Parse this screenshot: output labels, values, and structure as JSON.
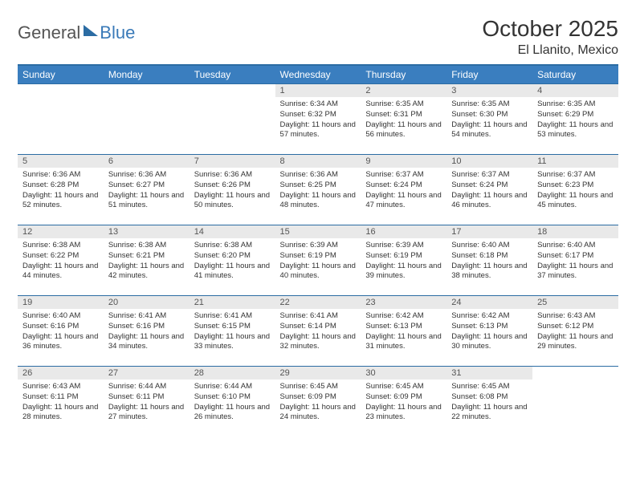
{
  "brand": {
    "part1": "General",
    "part2": "Blue"
  },
  "title": "October 2025",
  "location": "El Llanito, Mexico",
  "colors": {
    "header_bg": "#3a7ebf",
    "header_border": "#2b6ca3",
    "daynum_bg": "#e9e9e9",
    "text": "#333333",
    "brand_accent": "#3a7ab8"
  },
  "weekdays": [
    "Sunday",
    "Monday",
    "Tuesday",
    "Wednesday",
    "Thursday",
    "Friday",
    "Saturday"
  ],
  "weeks": [
    [
      null,
      null,
      null,
      {
        "n": "1",
        "sr": "6:34 AM",
        "ss": "6:32 PM",
        "dl": "11 hours and 57 minutes."
      },
      {
        "n": "2",
        "sr": "6:35 AM",
        "ss": "6:31 PM",
        "dl": "11 hours and 56 minutes."
      },
      {
        "n": "3",
        "sr": "6:35 AM",
        "ss": "6:30 PM",
        "dl": "11 hours and 54 minutes."
      },
      {
        "n": "4",
        "sr": "6:35 AM",
        "ss": "6:29 PM",
        "dl": "11 hours and 53 minutes."
      }
    ],
    [
      {
        "n": "5",
        "sr": "6:36 AM",
        "ss": "6:28 PM",
        "dl": "11 hours and 52 minutes."
      },
      {
        "n": "6",
        "sr": "6:36 AM",
        "ss": "6:27 PM",
        "dl": "11 hours and 51 minutes."
      },
      {
        "n": "7",
        "sr": "6:36 AM",
        "ss": "6:26 PM",
        "dl": "11 hours and 50 minutes."
      },
      {
        "n": "8",
        "sr": "6:36 AM",
        "ss": "6:25 PM",
        "dl": "11 hours and 48 minutes."
      },
      {
        "n": "9",
        "sr": "6:37 AM",
        "ss": "6:24 PM",
        "dl": "11 hours and 47 minutes."
      },
      {
        "n": "10",
        "sr": "6:37 AM",
        "ss": "6:24 PM",
        "dl": "11 hours and 46 minutes."
      },
      {
        "n": "11",
        "sr": "6:37 AM",
        "ss": "6:23 PM",
        "dl": "11 hours and 45 minutes."
      }
    ],
    [
      {
        "n": "12",
        "sr": "6:38 AM",
        "ss": "6:22 PM",
        "dl": "11 hours and 44 minutes."
      },
      {
        "n": "13",
        "sr": "6:38 AM",
        "ss": "6:21 PM",
        "dl": "11 hours and 42 minutes."
      },
      {
        "n": "14",
        "sr": "6:38 AM",
        "ss": "6:20 PM",
        "dl": "11 hours and 41 minutes."
      },
      {
        "n": "15",
        "sr": "6:39 AM",
        "ss": "6:19 PM",
        "dl": "11 hours and 40 minutes."
      },
      {
        "n": "16",
        "sr": "6:39 AM",
        "ss": "6:19 PM",
        "dl": "11 hours and 39 minutes."
      },
      {
        "n": "17",
        "sr": "6:40 AM",
        "ss": "6:18 PM",
        "dl": "11 hours and 38 minutes."
      },
      {
        "n": "18",
        "sr": "6:40 AM",
        "ss": "6:17 PM",
        "dl": "11 hours and 37 minutes."
      }
    ],
    [
      {
        "n": "19",
        "sr": "6:40 AM",
        "ss": "6:16 PM",
        "dl": "11 hours and 36 minutes."
      },
      {
        "n": "20",
        "sr": "6:41 AM",
        "ss": "6:16 PM",
        "dl": "11 hours and 34 minutes."
      },
      {
        "n": "21",
        "sr": "6:41 AM",
        "ss": "6:15 PM",
        "dl": "11 hours and 33 minutes."
      },
      {
        "n": "22",
        "sr": "6:41 AM",
        "ss": "6:14 PM",
        "dl": "11 hours and 32 minutes."
      },
      {
        "n": "23",
        "sr": "6:42 AM",
        "ss": "6:13 PM",
        "dl": "11 hours and 31 minutes."
      },
      {
        "n": "24",
        "sr": "6:42 AM",
        "ss": "6:13 PM",
        "dl": "11 hours and 30 minutes."
      },
      {
        "n": "25",
        "sr": "6:43 AM",
        "ss": "6:12 PM",
        "dl": "11 hours and 29 minutes."
      }
    ],
    [
      {
        "n": "26",
        "sr": "6:43 AM",
        "ss": "6:11 PM",
        "dl": "11 hours and 28 minutes."
      },
      {
        "n": "27",
        "sr": "6:44 AM",
        "ss": "6:11 PM",
        "dl": "11 hours and 27 minutes."
      },
      {
        "n": "28",
        "sr": "6:44 AM",
        "ss": "6:10 PM",
        "dl": "11 hours and 26 minutes."
      },
      {
        "n": "29",
        "sr": "6:45 AM",
        "ss": "6:09 PM",
        "dl": "11 hours and 24 minutes."
      },
      {
        "n": "30",
        "sr": "6:45 AM",
        "ss": "6:09 PM",
        "dl": "11 hours and 23 minutes."
      },
      {
        "n": "31",
        "sr": "6:45 AM",
        "ss": "6:08 PM",
        "dl": "11 hours and 22 minutes."
      },
      null
    ]
  ],
  "labels": {
    "sunrise": "Sunrise:",
    "sunset": "Sunset:",
    "daylight": "Daylight:"
  }
}
